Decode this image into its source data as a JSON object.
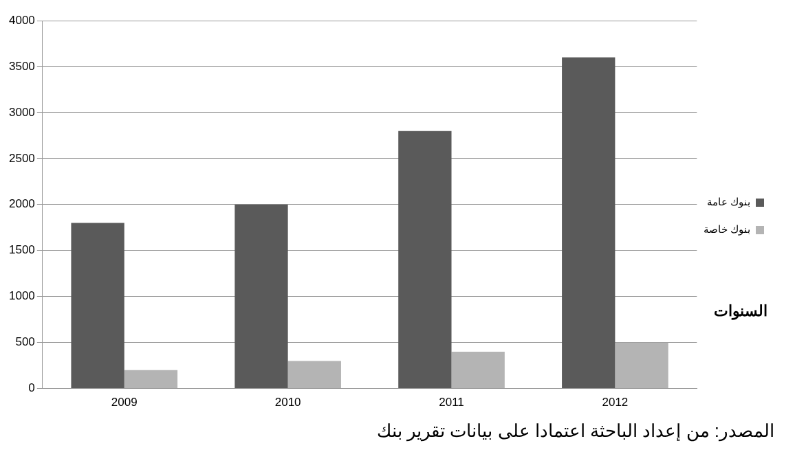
{
  "chart_data": {
    "type": "bar",
    "xlabel": "السنوات",
    "categories": [
      "2009",
      "2010",
      "2011",
      "2012"
    ],
    "series": [
      {
        "name": "بنوك عامة",
        "color": "#5a5a5a",
        "values": [
          1800,
          2000,
          2800,
          3600
        ]
      },
      {
        "name": "بنوك خاصة",
        "color": "#b4b4b4",
        "values": [
          200,
          300,
          400,
          500
        ]
      }
    ],
    "ylim": [
      0,
      4000
    ],
    "yticks": [
      0,
      500,
      1000,
      1500,
      2000,
      2500,
      3000,
      3500,
      4000
    ],
    "grid": "y",
    "legend": "right",
    "annotations": [
      "المصدر: من إعداد الباحثة اعتمادا على بيانات تقرير بنك"
    ]
  }
}
